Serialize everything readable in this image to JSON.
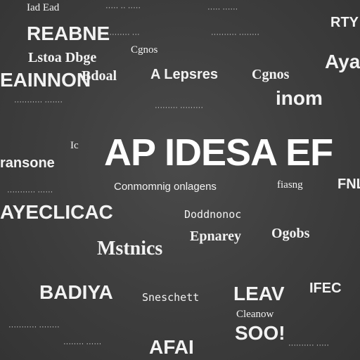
{
  "words": {
    "hero": "AP IDESA EF",
    "hero_prefix": "Ic",
    "reabne": "REABNE",
    "eainnon": "EAINNON",
    "ayeclicac": "AYECLICAC",
    "badiya": "BADIYA",
    "inom": "inom",
    "leav": "LEAV",
    "soo": "SOO!",
    "afai": "AFAI",
    "mstnics": "Mstnics",
    "lstoa": "Lstoa Dbge",
    "alepsres": "A Lepsres",
    "epnarey": "Epnarey",
    "conmomnig": "Conmomnig onlagens",
    "fiasng": "fiasng",
    "fnl": "FNL",
    "ransone": "ransone",
    "bdoal": "Bdoal",
    "cgnos": "Cgnos",
    "tad": "Iad Ead",
    "rty": "RTY",
    "ayao": "Ayao",
    "fiec": "IFEC",
    "dodnnonoe": "Doddnonoc",
    "sneschett": "Sneschett",
    "cleanow": "Cleanow",
    "ogobs": "Ogobs"
  }
}
